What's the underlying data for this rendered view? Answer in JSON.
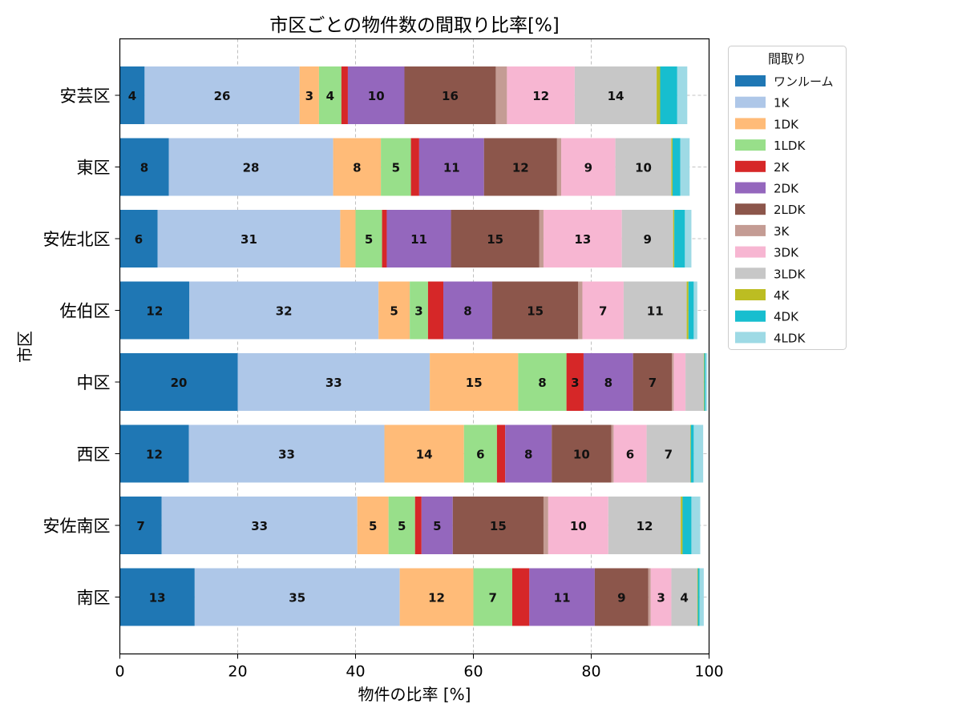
{
  "chart_data": {
    "type": "bar",
    "orientation": "horizontal",
    "stacked": true,
    "title": "市区ごとの物件数の間取り比率[%]",
    "xlabel": "物件の比率 [%]",
    "ylabel": "市区",
    "xlim": [
      0,
      100
    ],
    "xticks": [
      "0",
      "20",
      "40",
      "60",
      "80",
      "100"
    ],
    "grid": true,
    "legend_title": "間取り",
    "legend_position": "outside-right-top",
    "categories": [
      "安芸区",
      "東区",
      "安佐北区",
      "佐伯区",
      "中区",
      "西区",
      "安佐南区",
      "南区"
    ],
    "series": [
      {
        "name": "ワンルーム",
        "color": "#1f77b4",
        "values": [
          4.2,
          8.3,
          6.4,
          11.8,
          20.0,
          11.7,
          7.1,
          12.7
        ]
      },
      {
        "name": "1K",
        "color": "#aec7e8",
        "values": [
          26.3,
          27.9,
          31.0,
          32.1,
          32.6,
          33.2,
          33.2,
          34.8
        ]
      },
      {
        "name": "1DK",
        "color": "#ffbb78",
        "values": [
          3.3,
          8.1,
          2.6,
          5.3,
          15.0,
          13.5,
          5.3,
          12.5
        ]
      },
      {
        "name": "1LDK",
        "color": "#98df8a",
        "values": [
          3.8,
          5.1,
          4.5,
          3.1,
          8.2,
          5.6,
          4.5,
          6.6
        ]
      },
      {
        "name": "2K",
        "color": "#d62728",
        "values": [
          1.1,
          1.4,
          0.8,
          2.6,
          2.9,
          1.4,
          1.1,
          2.9
        ]
      },
      {
        "name": "2DK",
        "color": "#9467bd",
        "values": [
          9.6,
          11.0,
          10.9,
          8.3,
          8.4,
          7.9,
          5.3,
          11.1
        ]
      },
      {
        "name": "2LDK",
        "color": "#8c564b",
        "values": [
          15.5,
          12.4,
          15.0,
          14.6,
          6.6,
          10.1,
          15.4,
          9.1
        ]
      },
      {
        "name": "3K",
        "color": "#c49c94",
        "values": [
          1.9,
          0.7,
          0.7,
          0.7,
          0.3,
          0.4,
          0.8,
          0.4
        ]
      },
      {
        "name": "3DK",
        "color": "#f7b6d2",
        "values": [
          11.5,
          9.2,
          13.3,
          7.0,
          2.0,
          5.6,
          10.2,
          3.5
        ]
      },
      {
        "name": "3LDK",
        "color": "#c7c7c7",
        "values": [
          13.9,
          9.5,
          8.7,
          10.7,
          3.1,
          7.4,
          12.3,
          4.4
        ]
      },
      {
        "name": "4K",
        "color": "#bcbd22",
        "values": [
          0.6,
          0.2,
          0.2,
          0.3,
          0.1,
          0.1,
          0.3,
          0.1
        ]
      },
      {
        "name": "4DK",
        "color": "#17becf",
        "values": [
          2.9,
          1.3,
          1.8,
          0.9,
          0.2,
          0.5,
          1.5,
          0.3
        ]
      },
      {
        "name": "4LDK",
        "color": "#9edae5",
        "values": [
          1.7,
          1.6,
          1.1,
          0.6,
          0.3,
          1.6,
          1.5,
          0.7
        ]
      }
    ],
    "data_labels": [
      [
        "4",
        "26",
        "3",
        "4",
        "",
        "10",
        "16",
        "",
        "12",
        "14",
        "",
        "",
        ""
      ],
      [
        "8",
        "28",
        "8",
        "5",
        "",
        "11",
        "12",
        "",
        "9",
        "10",
        "",
        "",
        ""
      ],
      [
        "6",
        "31",
        "",
        "5",
        "",
        "11",
        "15",
        "",
        "13",
        "9",
        "",
        "",
        ""
      ],
      [
        "12",
        "32",
        "5",
        "3",
        "",
        "8",
        "15",
        "",
        "7",
        "11",
        "",
        "",
        ""
      ],
      [
        "20",
        "33",
        "15",
        "8",
        "3",
        "8",
        "7",
        "",
        "",
        "",
        "",
        "",
        ""
      ],
      [
        "12",
        "33",
        "14",
        "6",
        "",
        "8",
        "10",
        "",
        "6",
        "7",
        "",
        "",
        ""
      ],
      [
        "7",
        "33",
        "5",
        "5",
        "",
        "5",
        "15",
        "",
        "10",
        "12",
        "",
        "",
        ""
      ],
      [
        "13",
        "35",
        "12",
        "7",
        "",
        "11",
        "9",
        "",
        "3",
        "4",
        "",
        "",
        ""
      ]
    ]
  }
}
